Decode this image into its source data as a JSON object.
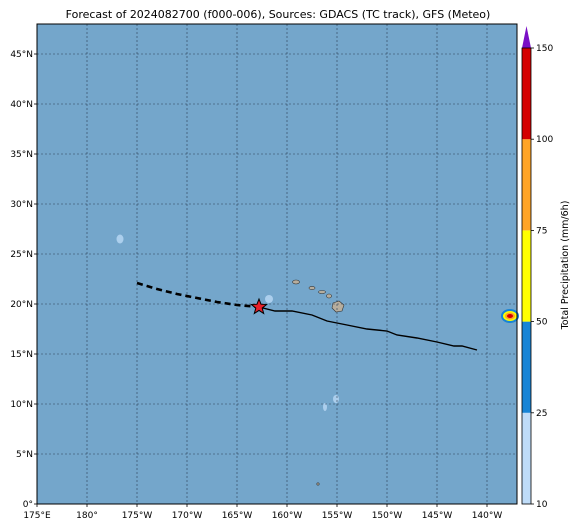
{
  "title": "Forecast of 2024082700 (f000-006), Sources: GDACS (TC track), GFS (Meteo)",
  "colors": {
    "ocean": "#74a6cb",
    "track": "#000000",
    "storm_marker": "#e8202a",
    "land": "#b7ae9e"
  },
  "map": {
    "lon_labels": [
      "175°E",
      "180°",
      "175°W",
      "170°W",
      "165°W",
      "160°W",
      "155°W",
      "150°W",
      "145°W",
      "140°W"
    ],
    "lat_labels": [
      "0°",
      "5°N",
      "10°N",
      "15°N",
      "20°N",
      "25°N",
      "30°N",
      "35°N",
      "40°N",
      "45°N"
    ],
    "lon_range": [
      175,
      223
    ],
    "lat_range": [
      0,
      48
    ]
  },
  "storm": {
    "current_position": {
      "lon": -162.8,
      "lat": 19.7
    },
    "forecast_track": [
      {
        "lon": -175.0,
        "lat": 22.1
      },
      {
        "lon": -173.0,
        "lat": 21.5
      },
      {
        "lon": -171.0,
        "lat": 21.0
      },
      {
        "lon": -169.0,
        "lat": 20.6
      },
      {
        "lon": -167.0,
        "lat": 20.2
      },
      {
        "lon": -165.0,
        "lat": 19.9
      },
      {
        "lon": -162.8,
        "lat": 19.7
      }
    ],
    "past_track": [
      {
        "lon": -162.8,
        "lat": 19.7
      },
      {
        "lon": -161.2,
        "lat": 19.3
      },
      {
        "lon": -159.5,
        "lat": 19.3
      },
      {
        "lon": -157.5,
        "lat": 18.9
      },
      {
        "lon": -156.0,
        "lat": 18.3
      },
      {
        "lon": -154.0,
        "lat": 17.9
      },
      {
        "lon": -152.0,
        "lat": 17.5
      },
      {
        "lon": -150.0,
        "lat": 17.3
      },
      {
        "lon": -149.0,
        "lat": 16.9
      },
      {
        "lon": -147.0,
        "lat": 16.6
      },
      {
        "lon": -145.0,
        "lat": 16.2
      },
      {
        "lon": -143.3,
        "lat": 15.8
      },
      {
        "lon": -142.5,
        "lat": 15.8
      },
      {
        "lon": -141.0,
        "lat": 15.4
      }
    ]
  },
  "colorbar": {
    "label": "Total Precipitation (mm/6h)",
    "ticks": [
      "10",
      "25",
      "50",
      "75",
      "100",
      "150"
    ],
    "segments": [
      {
        "from": 10,
        "to": 25,
        "color": "#bfdcf8"
      },
      {
        "from": 25,
        "to": 50,
        "color": "#1784d6"
      },
      {
        "from": 50,
        "to": 75,
        "color": "#ffff00"
      },
      {
        "from": 75,
        "to": 100,
        "color": "#ffa426"
      },
      {
        "from": 100,
        "to": 150,
        "color": "#d40000"
      }
    ],
    "extend_color": "#7a0fc6"
  }
}
